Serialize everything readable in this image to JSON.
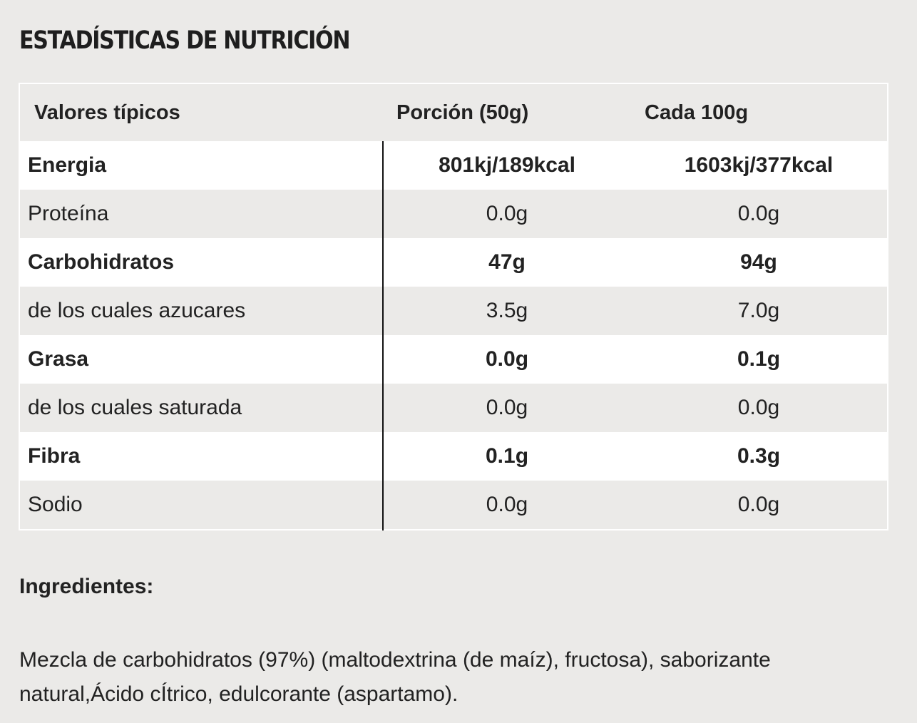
{
  "title": "ESTADÍSTICAS DE NUTRICIÓN",
  "table": {
    "headers": {
      "label": "Valores típicos",
      "porcion": "Porción (50g)",
      "cada": "Cada 100g"
    },
    "rows": [
      {
        "label": "Energia",
        "porcion": "801kj/189kcal",
        "cada": "1603kj/377kcal",
        "bold": true
      },
      {
        "label": "Proteína",
        "porcion": "0.0g",
        "cada": "0.0g",
        "bold": false
      },
      {
        "label": "Carbohidratos",
        "porcion": "47g",
        "cada": "94g",
        "bold": true
      },
      {
        "label": "de los cuales azucares",
        "porcion": "3.5g",
        "cada": "7.0g",
        "bold": false
      },
      {
        "label": "Grasa",
        "porcion": "0.0g",
        "cada": "0.1g",
        "bold": true
      },
      {
        "label": "de los cuales saturada",
        "porcion": "0.0g",
        "cada": "0.0g",
        "bold": false
      },
      {
        "label": "Fibra",
        "porcion": "0.1g",
        "cada": "0.3g",
        "bold": true
      },
      {
        "label": "Sodio",
        "porcion": "0.0g",
        "cada": "0.0g",
        "bold": false
      }
    ]
  },
  "ingredients": {
    "heading": "Ingredientes:",
    "text": "Mezcla de carbohidratos (97%) (maltodextrina (de maíz), fructosa), saborizante natural,Ácido cÍtrico, edulcorante (aspartamo)."
  },
  "colors": {
    "background": "#ebeae8",
    "row_alt": "#ffffff",
    "text": "#222222",
    "divider": "#111111"
  }
}
